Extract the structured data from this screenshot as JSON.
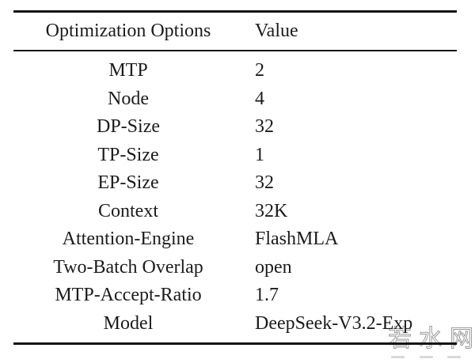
{
  "table": {
    "header": {
      "option": "Optimization Options",
      "value": "Value"
    },
    "rows": [
      {
        "option": "MTP",
        "value": "2"
      },
      {
        "option": "Node",
        "value": "4"
      },
      {
        "option": "DP-Size",
        "value": "32"
      },
      {
        "option": "TP-Size",
        "value": "1"
      },
      {
        "option": "EP-Size",
        "value": "32"
      },
      {
        "option": "Context",
        "value": "32K"
      },
      {
        "option": "Attention-Engine",
        "value": "FlashMLA"
      },
      {
        "option": "Two-Batch Overlap",
        "value": "open"
      },
      {
        "option": "MTP-Accept-Ratio",
        "value": "1.7"
      },
      {
        "option": "Model",
        "value": "DeepSeek-V3.2-Exp"
      }
    ]
  },
  "chart_data": {
    "type": "table",
    "columns": [
      "Optimization Options",
      "Value"
    ],
    "rows": [
      [
        "MTP",
        "2"
      ],
      [
        "Node",
        "4"
      ],
      [
        "DP-Size",
        "32"
      ],
      [
        "TP-Size",
        "1"
      ],
      [
        "EP-Size",
        "32"
      ],
      [
        "Context",
        "32K"
      ],
      [
        "Attention-Engine",
        "FlashMLA"
      ],
      [
        "Two-Batch Overlap",
        "open"
      ],
      [
        "MTP-Accept-Ratio",
        "1.7"
      ],
      [
        "Model",
        "DeepSeek-V3.2-Exp"
      ]
    ]
  },
  "watermark": {
    "text": "若水网"
  },
  "colors": {
    "background": "#ffffff",
    "text": "#1c1c1c",
    "rule": "#141414",
    "watermark": "#9b9b9b"
  }
}
